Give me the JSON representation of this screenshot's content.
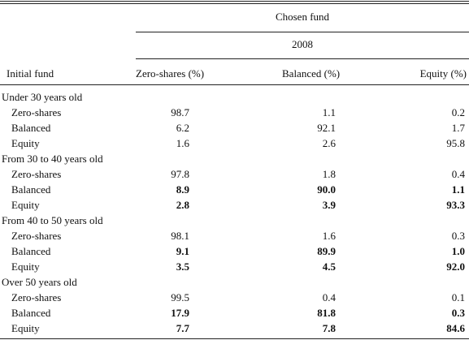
{
  "header": {
    "chosen_fund": "Chosen fund",
    "year": "2008",
    "initial_fund": "Initial fund",
    "zero_col": "Zero-shares (%)",
    "balanced_col": "Balanced (%)",
    "equity_col": "Equity (%)"
  },
  "groups": [
    {
      "title": "Under 30 years old",
      "rows": [
        {
          "label": "Zero-shares",
          "zero": "98.7",
          "balanced": "1.1",
          "equity": "0.2",
          "bold": false
        },
        {
          "label": "Balanced",
          "zero": "6.2",
          "balanced": "92.1",
          "equity": "1.7",
          "bold": false
        },
        {
          "label": "Equity",
          "zero": "1.6",
          "balanced": "2.6",
          "equity": "95.8",
          "bold": false
        }
      ]
    },
    {
      "title": "From 30 to 40 years old",
      "rows": [
        {
          "label": "Zero-shares",
          "zero": "97.8",
          "balanced": "1.8",
          "equity": "0.4",
          "bold": false
        },
        {
          "label": "Balanced",
          "zero": "8.9",
          "balanced": "90.0",
          "equity": "1.1",
          "bold": true
        },
        {
          "label": "Equity",
          "zero": "2.8",
          "balanced": "3.9",
          "equity": "93.3",
          "bold": true
        }
      ]
    },
    {
      "title": "From 40 to 50 years old",
      "rows": [
        {
          "label": "Zero-shares",
          "zero": "98.1",
          "balanced": "1.6",
          "equity": "0.3",
          "bold": false
        },
        {
          "label": "Balanced",
          "zero": "9.1",
          "balanced": "89.9",
          "equity": "1.0",
          "bold": true
        },
        {
          "label": "Equity",
          "zero": "3.5",
          "balanced": "4.5",
          "equity": "92.0",
          "bold": true
        }
      ]
    },
    {
      "title": "Over 50 years old",
      "rows": [
        {
          "label": "Zero-shares",
          "zero": "99.5",
          "balanced": "0.4",
          "equity": "0.1",
          "bold": false
        },
        {
          "label": "Balanced",
          "zero": "17.9",
          "balanced": "81.8",
          "equity": "0.3",
          "bold": true
        },
        {
          "label": "Equity",
          "zero": "7.7",
          "balanced": "7.8",
          "equity": "84.6",
          "bold": true
        }
      ]
    }
  ]
}
